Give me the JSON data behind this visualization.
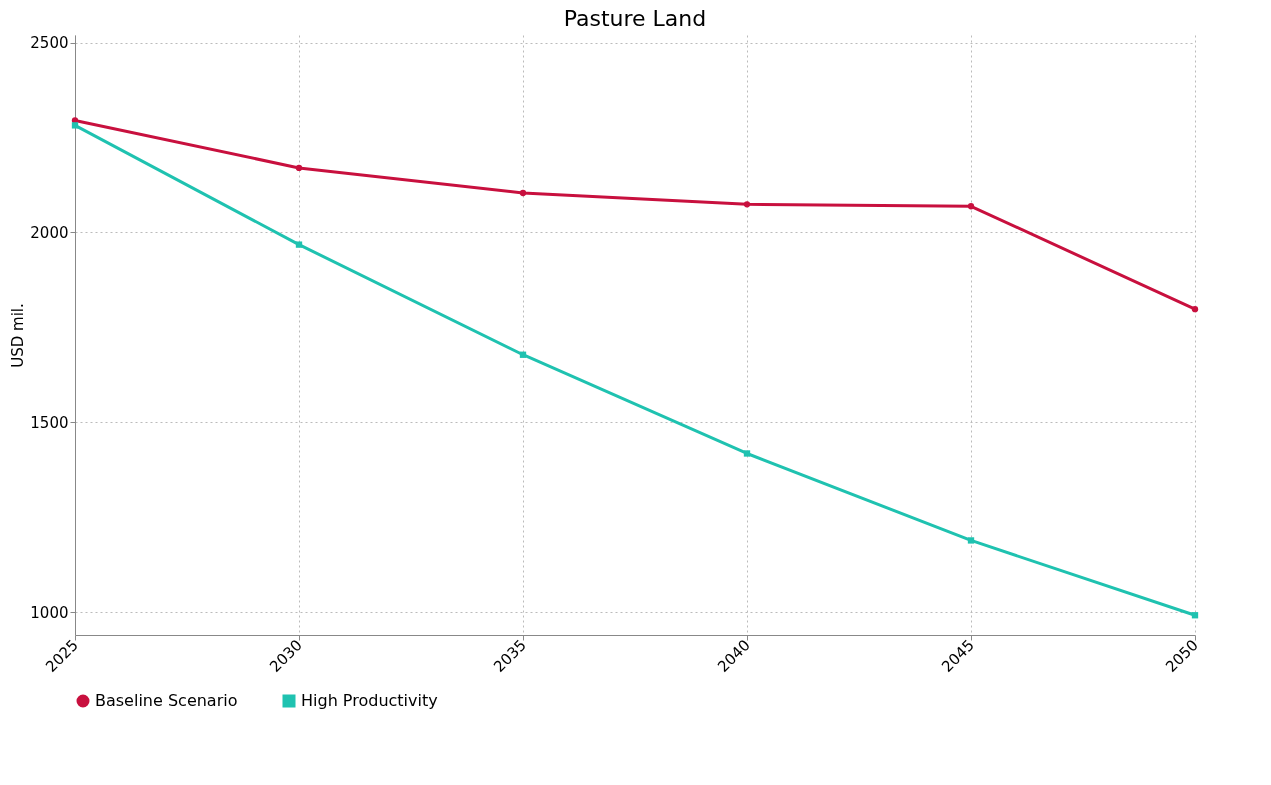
{
  "chart_data": {
    "type": "line",
    "title": "Pasture Land",
    "ylabel": "USD mil.",
    "x": [
      2025,
      2030,
      2035,
      2040,
      2045,
      2050
    ],
    "series": [
      {
        "name": "Baseline Scenario",
        "color": "#c8103e",
        "marker": "circle",
        "values": [
          2295,
          2170,
          2104,
          2074,
          2069,
          1798
        ]
      },
      {
        "name": "High Productivity",
        "color": "#1fc2b0",
        "marker": "square",
        "values": [
          2282,
          1968,
          1678,
          1418,
          1189,
          992
        ]
      }
    ],
    "xlim": [
      2025,
      2050
    ],
    "xticks": [
      2025,
      2030,
      2035,
      2040,
      2045,
      2050
    ],
    "ylim": [
      940,
      2520
    ],
    "yticks": [
      1000,
      1500,
      2000,
      2500
    ],
    "grid": true,
    "legend": "bottom",
    "line_style": "solid"
  }
}
